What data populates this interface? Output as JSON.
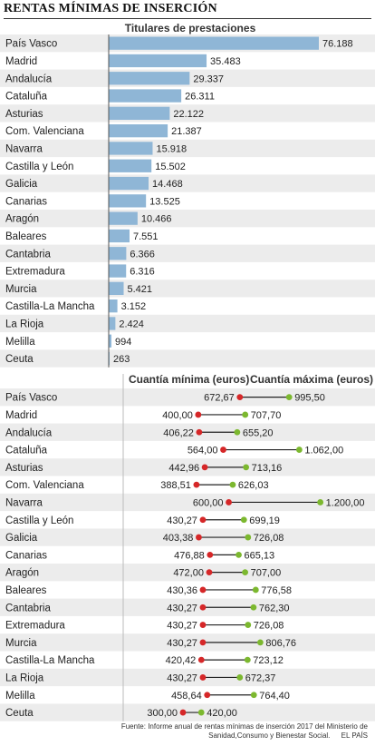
{
  "title": "RENTAS MÍNIMAS DE INSERCIÓN",
  "source": "Fuente: Informe anual de rentas mínimas de inserción 2017 del Ministerio de Sanidad,Consumo y Bienestar Social.",
  "credit": "EL PAÍS",
  "colors": {
    "bar": "#8fb6d6",
    "min_dot": "#d62728",
    "max_dot": "#7cb82f",
    "row_odd": "#ececec"
  },
  "chart_data": [
    {
      "type": "bar",
      "title": "Titulares de prestaciones",
      "categories": [
        "País Vasco",
        "Madrid",
        "Andalucía",
        "Cataluña",
        "Asturias",
        "Com. Valenciana",
        "Navarra",
        "Castilla y León",
        "Galicia",
        "Canarias",
        "Aragón",
        "Baleares",
        "Cantabria",
        "Extremadura",
        "Murcia",
        "Castilla-La Mancha",
        "La Rioja",
        "Melilla",
        "Ceuta"
      ],
      "values": [
        76188,
        35483,
        29337,
        26311,
        22122,
        21387,
        15918,
        15502,
        14468,
        13525,
        10466,
        7551,
        6366,
        6316,
        5421,
        3152,
        2424,
        994,
        263
      ],
      "value_labels": [
        "76.188",
        "35.483",
        "29.337",
        "26.311",
        "22.122",
        "21.387",
        "15.918",
        "15.502",
        "14.468",
        "13.525",
        "10.466",
        "7.551",
        "6.366",
        "6.316",
        "5.421",
        "3.152",
        "2.424",
        "994",
        "263"
      ]
    },
    {
      "type": "dumbbell",
      "series": [
        {
          "name": "Cuantía mínima (euros)"
        },
        {
          "name": "Cuantía máxima (euros)"
        }
      ],
      "categories": [
        "País Vasco",
        "Madrid",
        "Andalucía",
        "Cataluña",
        "Asturias",
        "Com. Valenciana",
        "Navarra",
        "Castilla y León",
        "Galicia",
        "Canarias",
        "Aragón",
        "Baleares",
        "Cantabria",
        "Extremadura",
        "Murcia",
        "Castilla-La Mancha",
        "La Rioja",
        "Melilla",
        "Ceuta"
      ],
      "min": [
        672.67,
        400.0,
        406.22,
        564.0,
        442.96,
        388.51,
        600.0,
        430.27,
        403.38,
        476.88,
        472.0,
        430.36,
        430.27,
        430.27,
        430.27,
        420.42,
        430.27,
        458.64,
        300.0
      ],
      "max": [
        995.5,
        707.7,
        655.2,
        1062.0,
        713.16,
        626.03,
        1200.0,
        699.19,
        726.08,
        665.13,
        707.0,
        776.58,
        762.3,
        726.08,
        806.76,
        723.12,
        672.37,
        764.4,
        420.0
      ],
      "min_labels": [
        "672,67",
        "400,00",
        "406,22",
        "564,00",
        "442,96",
        "388,51",
        "600,00",
        "430,27",
        "403,38",
        "476,88",
        "472,00",
        "430,36",
        "430,27",
        "430,27",
        "430,27",
        "420,42",
        "430,27",
        "458,64",
        "300,00"
      ],
      "max_labels": [
        "995,50",
        "707,70",
        "655,20",
        "1.062,00",
        "713,16",
        "626,03",
        "1.200,00",
        "699,19",
        "726,08",
        "665,13",
        "707,00",
        "776,58",
        "762,30",
        "726,08",
        "806,76",
        "723,12",
        "672,37",
        "764,40",
        "420,00"
      ]
    }
  ]
}
